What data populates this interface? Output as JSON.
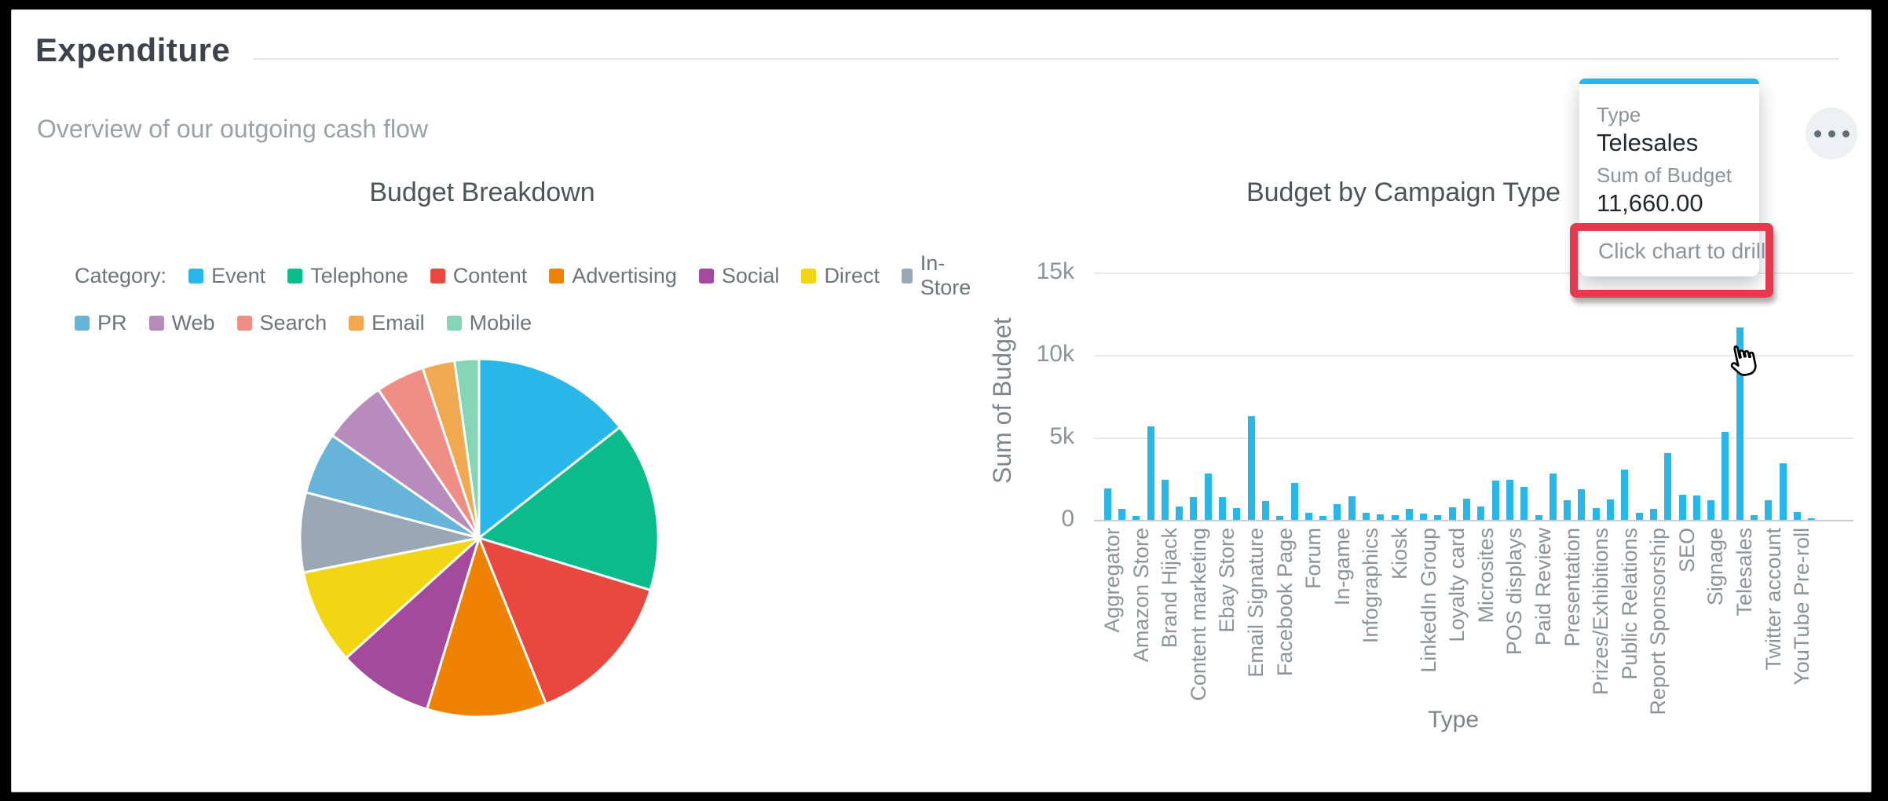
{
  "header": {
    "title": "Expenditure",
    "subtitle": "Overview of our outgoing cash flow",
    "menu_icon": "ellipsis-icon"
  },
  "colors": {
    "accent_cyan": "#29b6e8",
    "annotation_red": "#e6394e",
    "title_text": "#3c434a",
    "muted_text": "#8b939b"
  },
  "chart_data": [
    {
      "type": "pie",
      "title": "Budget Breakdown",
      "legend_prefix": "Category:",
      "legend_position": "top",
      "slices": [
        {
          "label": "Event",
          "color": "#29b6e8",
          "pct": 14.4
        },
        {
          "label": "Telephone",
          "color": "#0cbb8b",
          "pct": 15.3
        },
        {
          "label": "Content",
          "color": "#e8483f",
          "pct": 14.2
        },
        {
          "label": "Advertising",
          "color": "#ef8200",
          "pct": 10.8
        },
        {
          "label": "Social",
          "color": "#a44a9c",
          "pct": 8.6
        },
        {
          "label": "Direct",
          "color": "#f2d513",
          "pct": 8.6
        },
        {
          "label": "In-Store",
          "color": "#9aa7b4",
          "pct": 7.2
        },
        {
          "label": "PR",
          "color": "#66b5d9",
          "pct": 5.6
        },
        {
          "label": "Web",
          "color": "#b78cbc",
          "pct": 5.8
        },
        {
          "label": "Search",
          "color": "#ef8e84",
          "pct": 4.4
        },
        {
          "label": "Email",
          "color": "#f0a950",
          "pct": 2.9
        },
        {
          "label": "Mobile",
          "color": "#85d4b5",
          "pct": 2.2
        }
      ]
    },
    {
      "type": "bar",
      "title": "Budget by Campaign Type",
      "xlabel": "Type",
      "ylabel": "Sum of Budget",
      "bar_color": "#29b6e8",
      "ylim": [
        0,
        15000
      ],
      "yticks": [
        "0",
        "5k",
        "10k",
        "15k"
      ],
      "grid": true,
      "note": "only every other category label is rendered on the axis; unlabeled bars have empty-string labels",
      "categories": [
        "Aggregator",
        "",
        "Amazon Store",
        "",
        "Brand Hijack",
        "",
        "Content marketing",
        "",
        "Ebay Store",
        "",
        "Email Signature",
        "",
        "Facebook Page",
        "",
        "Forum",
        "",
        "In-game",
        "",
        "Infographics",
        "",
        "Kiosk",
        "",
        "LinkedIn Group",
        "",
        "Loyalty card",
        "",
        "Microsites",
        "",
        "POS displays",
        "",
        "Paid Review",
        "",
        "Presentation",
        "",
        "Prizes/Exhibitions",
        "",
        "Public Relations",
        "",
        "Report Sponsorship",
        "",
        "SEO",
        "",
        "Signage",
        "",
        "Telesales",
        "",
        "Twitter account",
        "",
        "YouTube Pre-roll",
        ""
      ],
      "values": [
        1900,
        650,
        250,
        5650,
        2450,
        800,
        1400,
        2800,
        1400,
        700,
        6300,
        1150,
        250,
        2250,
        450,
        250,
        950,
        1450,
        450,
        350,
        300,
        650,
        400,
        300,
        750,
        1300,
        800,
        2400,
        2450,
        2000,
        300,
        2800,
        1200,
        1850,
        700,
        1250,
        3050,
        450,
        650,
        4050,
        1550,
        1500,
        1200,
        5350,
        11660,
        300,
        1200,
        3450,
        500,
        100
      ]
    }
  ],
  "tooltip": {
    "field_label": "Type",
    "field_value": "Telesales",
    "measure_label": "Sum of Budget",
    "measure_value": "11,660.00",
    "hint": "Click chart to drill"
  }
}
